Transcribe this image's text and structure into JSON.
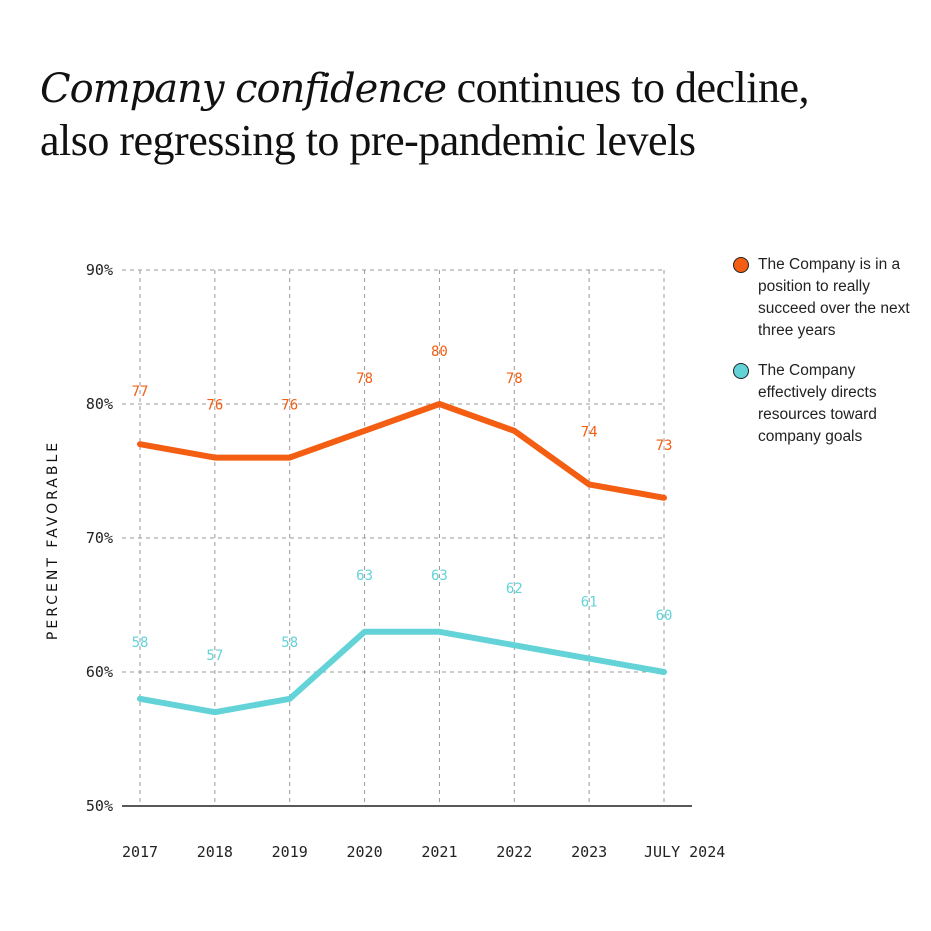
{
  "title": {
    "accent": "Company confidence",
    "line1_rest": " continues to decline,",
    "line2": "also regressing to pre-pandemic levels"
  },
  "chart_data": {
    "type": "line",
    "categories": [
      "2017",
      "2018",
      "2019",
      "2020",
      "2021",
      "2022",
      "2023",
      "JULY 2024"
    ],
    "series": [
      {
        "name": "The Company is in a position to really succeed over the next three years",
        "color": "#F45E12",
        "values": [
          77,
          76,
          76,
          78,
          80,
          78,
          74,
          73
        ]
      },
      {
        "name": "The Company effectively directs resources toward company goals",
        "color": "#63D3D8",
        "values": [
          58,
          57,
          58,
          63,
          63,
          62,
          61,
          60
        ]
      }
    ],
    "ylabel": "PERCENT FAVORABLE",
    "ylim": [
      50,
      90
    ],
    "yticks": [
      50,
      60,
      70,
      80,
      90
    ],
    "ytick_labels": [
      "50%",
      "60%",
      "70%",
      "80%",
      "90%"
    ],
    "grid": true,
    "legend_position": "right"
  }
}
